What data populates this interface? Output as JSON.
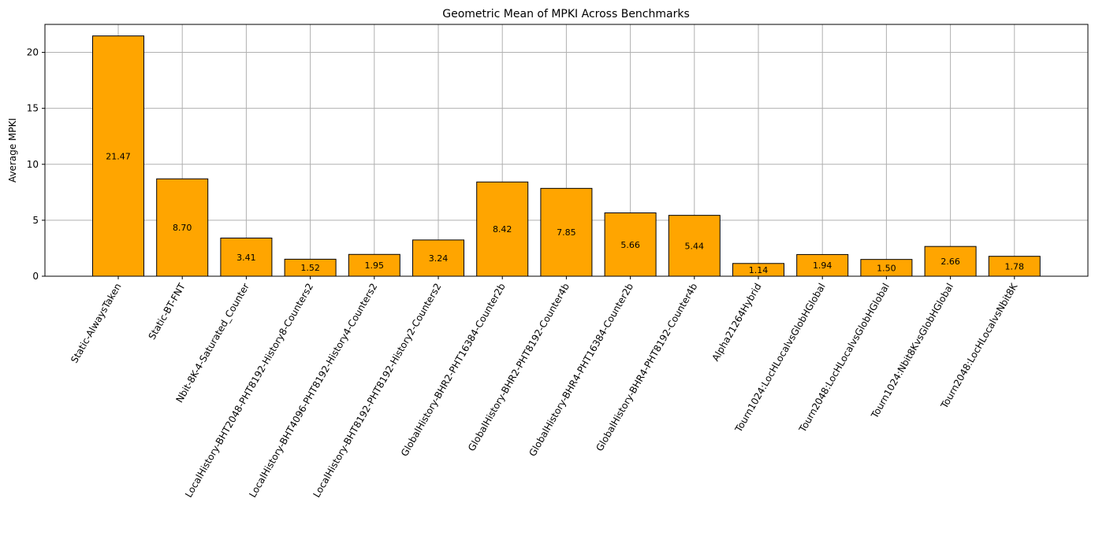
{
  "chart_data": {
    "type": "bar",
    "title": "Geometric Mean of MPKI Across Benchmarks",
    "xlabel": "",
    "ylabel": "Average MPKI",
    "ylim": [
      0,
      22.5
    ],
    "yticks": [
      0,
      5,
      10,
      15,
      20
    ],
    "grid": true,
    "bar_color": "#FFA500",
    "edge_color": "#000000",
    "categories": [
      "Static-AlwaysTaken",
      "Static-BT-FNT",
      "Nbit-8K-4-Saturated_Counter",
      "LocalHistory-BHT2048-PHT8192-History8-Counters2",
      "LocalHistory-BHT4096-PHT8192-History4-Counters2",
      "LocalHistory-BHT8192-PHT8192-History2-Counters2",
      "GlobalHistory-BHR2-PHT16384-Counter2b",
      "GlobalHistory-BHR2-PHT8192-Counter4b",
      "GlobalHistory-BHR4-PHT16384-Counter2b",
      "GlobalHistory-BHR4-PHT8192-Counter4b",
      "Alpha21264Hybrid",
      "Tourn1024:LocHLocalvsGlobHGlobal",
      "Tourn2048:LocHLocalvsGlobHGlobal",
      "Tourn1024:Nbit8KvsGlobHGlobal",
      "Tourn2048:LocHLocalvsNbit8K"
    ],
    "values": [
      21.47,
      8.7,
      3.41,
      1.52,
      1.95,
      3.24,
      8.42,
      7.85,
      5.66,
      5.44,
      1.14,
      1.94,
      1.5,
      2.66,
      1.78
    ],
    "data_labels": [
      "21.47",
      "8.70",
      "3.41",
      "1.52",
      "1.95",
      "3.24",
      "8.42",
      "7.85",
      "5.66",
      "5.44",
      "1.14",
      "1.94",
      "1.50",
      "2.66",
      "1.78"
    ]
  }
}
